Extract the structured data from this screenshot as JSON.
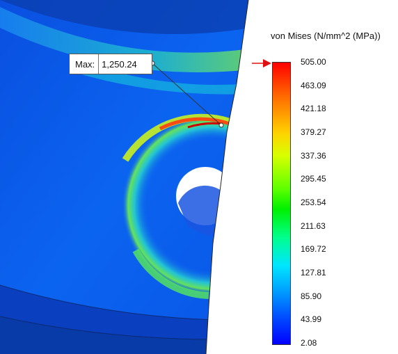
{
  "legend": {
    "title": "von Mises (N/mm^2 (MPa))",
    "tick_labels": [
      "505.00",
      "463.09",
      "421.18",
      "379.27",
      "337.36",
      "295.45",
      "253.54",
      "211.63",
      "169.72",
      "127.81",
      "85.90",
      "43.99",
      "2.08"
    ],
    "max_value": 505.0,
    "min_value": 2.08,
    "marker_color": "#e01010"
  },
  "max_callout": {
    "label": "Max:",
    "value": "1,250.24"
  }
}
